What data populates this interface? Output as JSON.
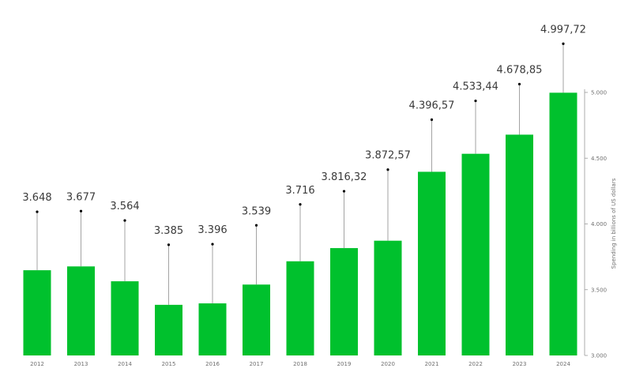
{
  "chart_data": {
    "type": "bar",
    "categories": [
      "2012",
      "2013",
      "2014",
      "2015",
      "2016",
      "2017",
      "2018",
      "2019",
      "2020",
      "2021",
      "2022",
      "2023",
      "2024"
    ],
    "values": [
      3648,
      3677,
      3564,
      3385,
      3396,
      3539,
      3716,
      3816.32,
      3872.57,
      4396.57,
      4533.44,
      4678.85,
      4997.72
    ],
    "data_labels": [
      "3.648",
      "3.677",
      "3.564",
      "3.385",
      "3.396",
      "3.539",
      "3.716",
      "3.816,32",
      "3.872,57",
      "4.396,57",
      "4.533,44",
      "4.678,85",
      "4.997,72"
    ],
    "title": "",
    "xlabel": "",
    "ylabel": "Spending in billions of US dollars",
    "ylim": [
      3000,
      5000
    ],
    "yticks": [
      3000,
      3500,
      4000,
      4500,
      5000
    ],
    "ytick_labels": [
      "3.000",
      "3.500",
      "4.000",
      "4.500",
      "5.000"
    ],
    "y_axis_side": "right",
    "grid": false,
    "bar_color": "#00c12d",
    "annotation_line_color": "#8c8c8c"
  }
}
